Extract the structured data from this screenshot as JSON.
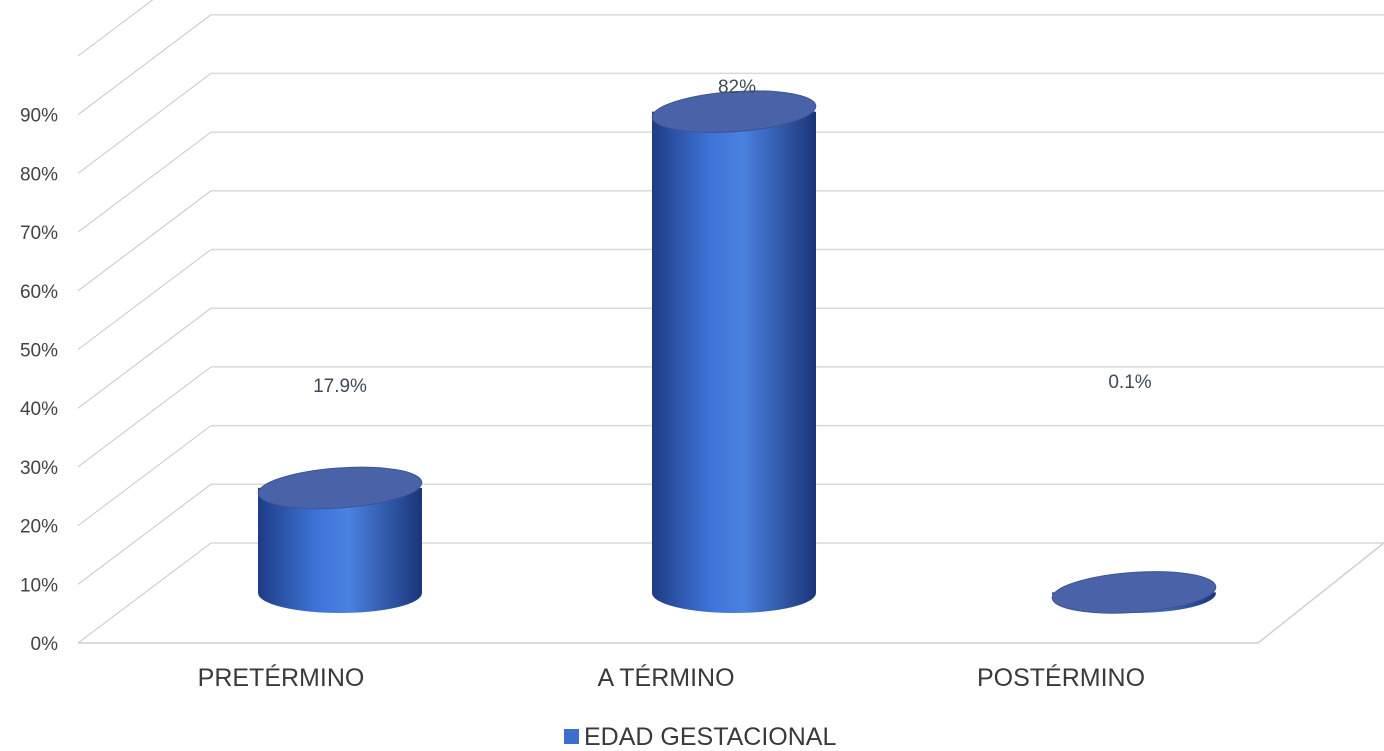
{
  "chart_data": {
    "type": "bar",
    "style": "3d-cylinder",
    "categories": [
      "PRETÉRMINO",
      "A TÉRMINO",
      "POSTÉRMINO"
    ],
    "series": [
      {
        "name": "EDAD GESTACIONAL",
        "values": [
          17.9,
          82,
          0.1
        ],
        "labels": [
          "17.9%",
          "82%",
          "0.1%"
        ]
      }
    ],
    "y_ticks": [
      "0%",
      "10%",
      "20%",
      "30%",
      "40%",
      "50%",
      "60%",
      "70%",
      "80%",
      "90%"
    ],
    "ylim": [
      0,
      100
    ],
    "grid": true,
    "legend": "bottom",
    "colors": {
      "bar": "#3a6fd0",
      "bar_dark": "#1f3f8a",
      "top": "#4a63a8",
      "grid": "#d9d9d9",
      "wall": "#bfbfbf"
    }
  }
}
